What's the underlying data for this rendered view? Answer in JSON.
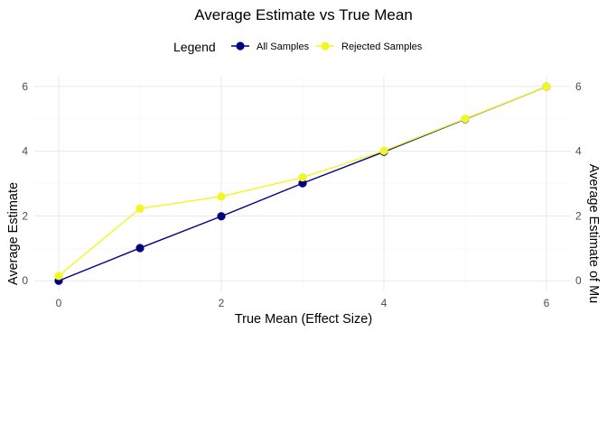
{
  "chart_data": {
    "type": "line",
    "title": "Average Estimate vs True Mean",
    "xlabel": "True Mean (Effect Size)",
    "ylabel": "Average Estimate",
    "ylabel_right": "Average Estimate of Mu",
    "legend": {
      "title": "Legend",
      "position": "top"
    },
    "x": [
      0,
      1,
      2,
      3,
      4,
      5,
      6
    ],
    "xlim": [
      -0.3,
      6.3
    ],
    "ylim": [
      -0.3,
      6.3
    ],
    "xticks": [
      "0",
      "2",
      "4",
      "6"
    ],
    "yticks": [
      "0",
      "2",
      "4",
      "6"
    ],
    "grid": true,
    "series": [
      {
        "name": "All Samples",
        "color": "#000080",
        "values": [
          0.0,
          1.01,
          1.99,
          3.01,
          3.98,
          4.99,
          5.99
        ]
      },
      {
        "name": "Rejected Samples",
        "color": "#f0f724",
        "values": [
          0.15,
          2.23,
          2.6,
          3.19,
          4.01,
          5.0,
          5.99
        ]
      }
    ]
  }
}
